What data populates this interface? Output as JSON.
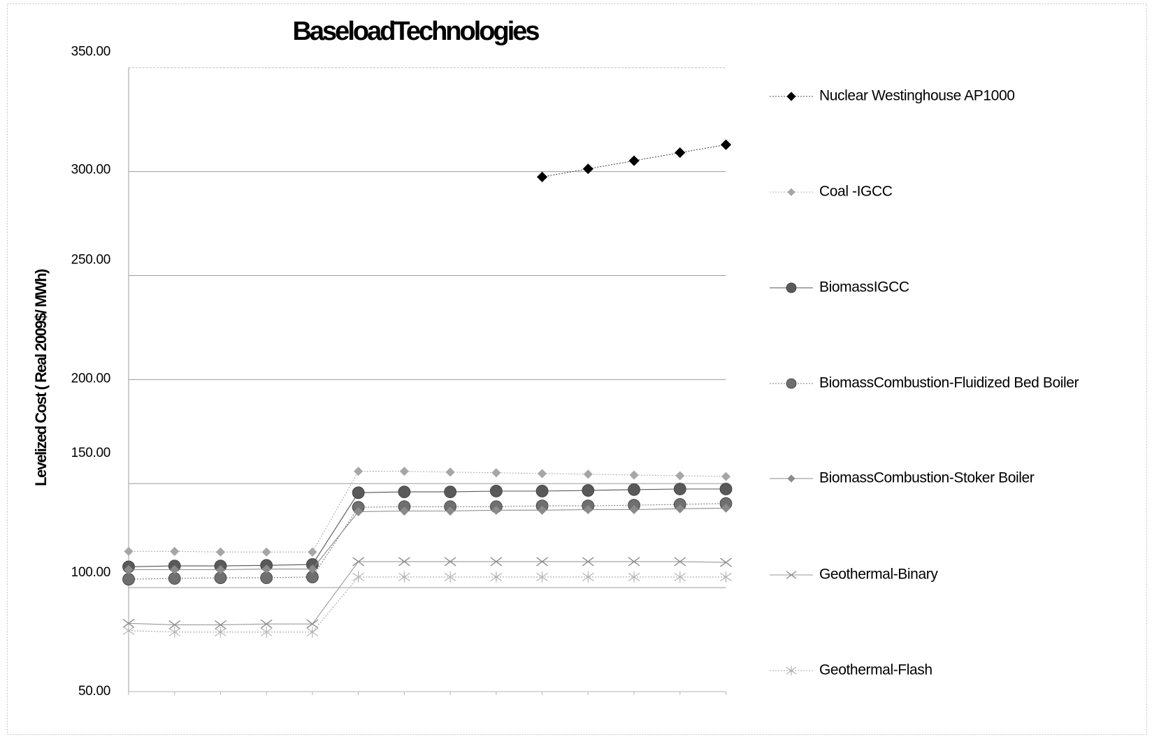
{
  "chart_data": {
    "type": "line",
    "title": "BaseloadTechnologies",
    "xlabel": "",
    "ylabel": "Levelized Cost ( Real 2009$/ MWh)",
    "ylim": [
      50,
      350
    ],
    "yticks": [
      350,
      300,
      250,
      200,
      150,
      100,
      50
    ],
    "ytick_labels": [
      "350.00",
      "300.00",
      "250.00",
      "200.00",
      "150.00",
      "100.00",
      "50.00"
    ],
    "grid": true,
    "legend_position": "right",
    "series": [
      {
        "name": "Nuclear Westinghouse AP1000",
        "marker": "diamond",
        "marker_color": "#000000",
        "line_color": "#4a4a4a",
        "line_style": "dotted",
        "values": [
          null,
          null,
          null,
          null,
          null,
          null,
          null,
          null,
          null,
          297.4,
          301.3,
          305.2,
          309.1,
          312.9
        ]
      },
      {
        "name": "Coal -IGCC",
        "marker": "diamond",
        "marker_color": "#a6a6a6",
        "line_color": "#b0b0b0",
        "line_style": "dotted",
        "values": [
          117.4,
          117.4,
          117.1,
          117.1,
          117.1,
          155.9,
          155.9,
          155.5,
          155.2,
          154.8,
          154.5,
          154.1,
          153.8,
          153.4
        ]
      },
      {
        "name": "BiomassIGCC",
        "marker": "circle",
        "marker_color": "#595959",
        "line_color": "#555555",
        "line_style": "solid",
        "values": [
          110.0,
          110.4,
          110.4,
          110.7,
          111.1,
          145.6,
          146.0,
          146.0,
          146.4,
          146.4,
          146.7,
          147.1,
          147.4,
          147.4
        ]
      },
      {
        "name": "BiomassCombustion-Fluidized Bed Boiler",
        "marker": "circle",
        "marker_color": "#6f6f6f",
        "line_color": "#7a7a7a",
        "line_style": "dotted",
        "values": [
          104.0,
          104.4,
          104.7,
          104.7,
          105.1,
          138.6,
          138.9,
          138.9,
          138.9,
          139.3,
          139.3,
          139.6,
          140.0,
          140.4
        ]
      },
      {
        "name": "BiomassCombustion-Stoker Boiler",
        "marker": "diamond",
        "marker_color": "#8a8a8a",
        "line_color": "#8c8c8c",
        "line_style": "solid",
        "values": [
          108.6,
          108.6,
          108.6,
          108.9,
          108.9,
          136.5,
          136.8,
          136.8,
          137.2,
          137.2,
          137.5,
          137.5,
          137.9,
          138.2
        ]
      },
      {
        "name": "Geothermal-Binary",
        "marker": "x",
        "marker_color": "#8c8c8c",
        "line_color": "#9a9a9a",
        "line_style": "solid",
        "values": [
          82.8,
          82.1,
          82.1,
          82.5,
          82.5,
          112.5,
          112.5,
          112.5,
          112.5,
          112.5,
          112.5,
          112.5,
          112.5,
          112.1
        ]
      },
      {
        "name": "Geothermal-Flash",
        "marker": "asterisk",
        "marker_color": "#b3b3b3",
        "line_color": "#a8a8a8",
        "line_style": "dotted",
        "values": [
          79.3,
          78.6,
          78.6,
          78.6,
          78.6,
          105.1,
          105.1,
          105.1,
          105.1,
          105.1,
          105.1,
          105.1,
          105.1,
          105.1
        ]
      }
    ]
  }
}
